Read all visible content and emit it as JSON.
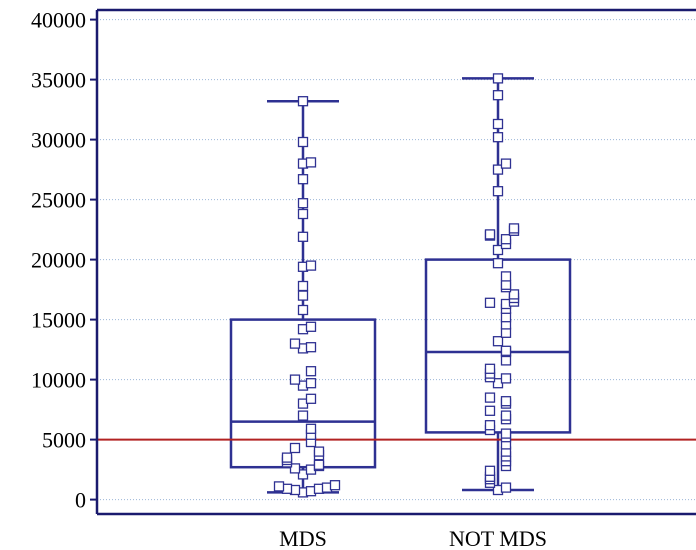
{
  "chart_data": {
    "type": "box",
    "title": "",
    "xlabel": "",
    "ylabel": "",
    "ylim": [
      -1200,
      40800
    ],
    "yticks": [
      0,
      5000,
      10000,
      15000,
      20000,
      25000,
      30000,
      35000,
      40000
    ],
    "ytick_labels": [
      "0",
      "5000",
      "10000",
      "15000",
      "20000",
      "25000",
      "30000",
      "35000",
      "40000"
    ],
    "grid": "horizontal dotted",
    "reference_line": {
      "y": 5000,
      "color": "#b22222"
    },
    "colors": {
      "box": "#2e3192",
      "reference": "#b22222",
      "grid": "#9bb5d8",
      "axis": "#1a1a6e"
    },
    "categories": [
      "MDS",
      "NOT MDS"
    ],
    "boxes": [
      {
        "category": "MDS",
        "whisker_low": 600,
        "q1": 2700,
        "median": 6500,
        "q3": 15000,
        "whisker_high": 33200,
        "points": [
          33200,
          29800,
          28100,
          28000,
          26700,
          24700,
          23800,
          21900,
          19500,
          19400,
          17800,
          17000,
          15800,
          14400,
          14200,
          13000,
          12700,
          12600,
          10700,
          10000,
          9700,
          9500,
          8400,
          8000,
          7000,
          5900,
          5400,
          4800,
          4300,
          4000,
          3700,
          3500,
          3300,
          3100,
          2900,
          2800,
          2600,
          2500,
          2100,
          1200,
          1100,
          1000,
          900,
          900,
          800,
          700,
          600
        ]
      },
      {
        "category": "NOT MDS",
        "whisker_low": 800,
        "q1": 5600,
        "median": 12300,
        "q3": 20000,
        "whisker_high": 35100,
        "points": [
          35100,
          33700,
          31300,
          30200,
          28000,
          27500,
          25700,
          22600,
          22400,
          22100,
          22000,
          21700,
          21300,
          20800,
          19700,
          18600,
          17900,
          17700,
          17100,
          16800,
          16500,
          16400,
          16300,
          15900,
          15200,
          14600,
          13900,
          13200,
          12400,
          12300,
          11600,
          10900,
          10500,
          10200,
          10100,
          9700,
          8500,
          8200,
          8000,
          7400,
          7000,
          6700,
          6200,
          5800,
          5500,
          5200,
          4600,
          4000,
          3600,
          3200,
          2800,
          2400,
          1900,
          1700,
          1400,
          1000,
          800
        ]
      }
    ]
  }
}
